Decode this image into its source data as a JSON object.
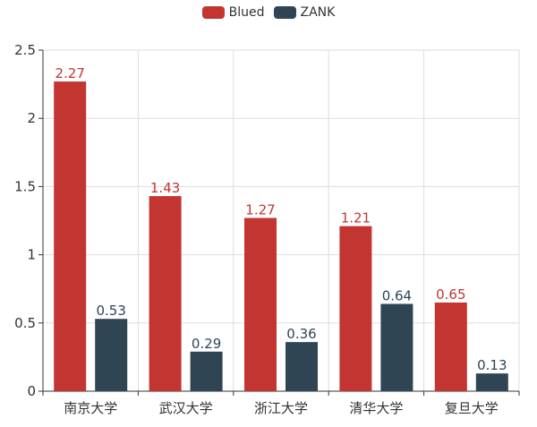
{
  "chart_data": {
    "type": "bar",
    "categories": [
      "南京大学",
      "武汉大学",
      "浙江大学",
      "清华大学",
      "复旦大学"
    ],
    "series": [
      {
        "name": "Blued",
        "values": [
          2.27,
          1.43,
          1.27,
          1.21,
          0.65
        ],
        "color": "#c23531"
      },
      {
        "name": "ZANK",
        "values": [
          0.53,
          0.29,
          0.36,
          0.64,
          0.13
        ],
        "color": "#2f4554"
      }
    ],
    "y_ticks": [
      "0",
      "0.5",
      "1",
      "1.5",
      "2",
      "2.5"
    ],
    "ylim": [
      0,
      2.5
    ],
    "grid": true,
    "legend_position": "top-center",
    "data_labels": true
  }
}
